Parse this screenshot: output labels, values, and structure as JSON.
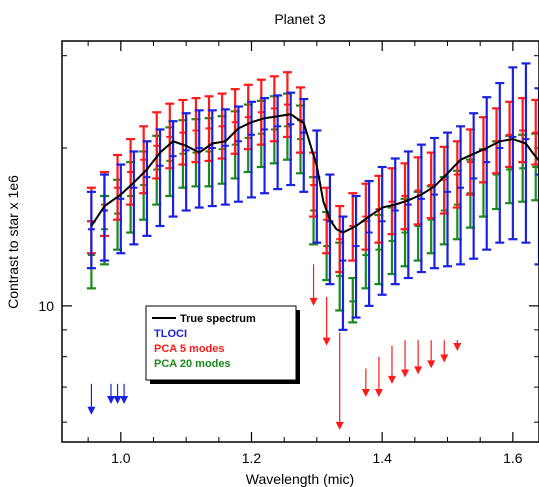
{
  "chart_data": {
    "type": "line",
    "title": "Planet 3",
    "xlabel": "Wavelength (mic)",
    "ylabel": "Contrast to star x 1e6",
    "xlim": [
      0.91,
      1.64
    ],
    "ylim": [
      5.5,
      32
    ],
    "yscale": "log",
    "x_ticks": [
      1.0,
      1.2,
      1.4,
      1.6
    ],
    "x_tick_labels": [
      "1.0",
      "1.2",
      "1.4",
      "1.6"
    ],
    "y_ticks": [
      10
    ],
    "y_tick_labels": [
      "10"
    ],
    "legend": {
      "placement": "lower-left",
      "entries": [
        {
          "label": "True spectrum",
          "color": "#000000"
        },
        {
          "label": "TLOCI",
          "color": "#1a22e0"
        },
        {
          "label": "PCA 5 modes",
          "color": "#ff1a1a"
        },
        {
          "label": "PCA 20 modes",
          "color": "#1a8a1a"
        }
      ]
    },
    "series": [
      {
        "name": "True spectrum",
        "color": "#000000",
        "x": [
          0.955,
          0.975,
          1.0,
          1.02,
          1.04,
          1.06,
          1.08,
          1.1,
          1.12,
          1.14,
          1.16,
          1.18,
          1.2,
          1.22,
          1.24,
          1.26,
          1.28,
          1.3,
          1.31,
          1.32,
          1.33,
          1.34,
          1.36,
          1.38,
          1.4,
          1.42,
          1.44,
          1.46,
          1.48,
          1.5,
          1.52,
          1.54,
          1.56,
          1.58,
          1.6,
          1.62,
          1.63,
          1.64
        ],
        "y": [
          14.2,
          15.5,
          16.3,
          17.2,
          18.2,
          19.6,
          20.6,
          20.2,
          19.6,
          20.4,
          20.6,
          21.8,
          22.4,
          22.8,
          23.0,
          23.2,
          22.3,
          18.5,
          15.8,
          14.6,
          14.0,
          13.8,
          14.2,
          14.8,
          15.4,
          15.6,
          15.9,
          16.3,
          16.9,
          17.9,
          19.0,
          19.5,
          20.0,
          20.6,
          20.8,
          20.4,
          19.6,
          18.9
        ]
      },
      {
        "name": "TLOCI",
        "color": "#1a22e0",
        "x": [
          0.955,
          0.975,
          1.0,
          1.02,
          1.04,
          1.06,
          1.08,
          1.1,
          1.12,
          1.14,
          1.16,
          1.18,
          1.2,
          1.22,
          1.24,
          1.26,
          1.28,
          1.3,
          1.32,
          1.34,
          1.36,
          1.38,
          1.4,
          1.42,
          1.44,
          1.46,
          1.48,
          1.5,
          1.52,
          1.54,
          1.56,
          1.58,
          1.6,
          1.62,
          1.64
        ],
        "y": [
          14.0,
          15.2,
          16.0,
          16.8,
          17.6,
          18.5,
          19.3,
          19.8,
          20.0,
          20.0,
          20.2,
          20.6,
          21.2,
          21.7,
          22.0,
          22.2,
          21.4,
          17.6,
          14.5,
          12.2,
          13.0,
          13.8,
          14.5,
          15.2,
          15.6,
          16.0,
          16.3,
          16.5,
          16.8,
          17.5,
          18.8,
          20.0,
          21.0,
          20.8,
          17.8
        ],
        "err_low": [
          11.8,
          12.2,
          12.6,
          13.1,
          13.6,
          14.2,
          14.8,
          15.2,
          15.4,
          15.5,
          15.6,
          15.8,
          16.1,
          16.4,
          16.7,
          17.0,
          16.5,
          13.2,
          11.0,
          9.0,
          9.5,
          10.0,
          10.5,
          11.0,
          11.3,
          11.6,
          11.8,
          11.9,
          12.0,
          12.3,
          12.8,
          13.2,
          13.4,
          13.2,
          12.0
        ],
        "err_high": [
          16.5,
          17.8,
          18.6,
          19.7,
          20.6,
          21.7,
          22.5,
          23.3,
          23.6,
          23.6,
          23.7,
          24.0,
          24.5,
          24.9,
          25.2,
          25.5,
          24.8,
          21.6,
          17.8,
          14.8,
          16.2,
          17.3,
          18.4,
          19.1,
          19.7,
          20.3,
          20.9,
          21.4,
          22.0,
          23.3,
          25.0,
          26.6,
          28.5,
          29.0,
          26.0
        ]
      },
      {
        "name": "PCA 5 modes",
        "color": "#ff1a1a",
        "x": [
          0.955,
          0.975,
          0.995,
          1.015,
          1.035,
          1.055,
          1.075,
          1.095,
          1.115,
          1.135,
          1.155,
          1.175,
          1.195,
          1.215,
          1.235,
          1.255,
          1.275,
          1.295,
          1.315,
          1.335,
          1.355,
          1.375,
          1.395,
          1.415,
          1.435,
          1.455,
          1.475,
          1.495,
          1.515,
          1.535,
          1.555,
          1.575,
          1.595,
          1.615,
          1.635
        ],
        "y": [
          14.5,
          15.6,
          16.8,
          18.0,
          19.0,
          20.2,
          21.0,
          21.4,
          21.6,
          21.8,
          22.0,
          22.4,
          22.9,
          23.4,
          23.8,
          24.2,
          22.6,
          17.0,
          14.6,
          13.4,
          14.2,
          14.8,
          15.3,
          15.8,
          16.2,
          16.6,
          17.0,
          17.4,
          17.8,
          18.8,
          19.8,
          20.6,
          21.2,
          21.6,
          21.4
        ],
        "err_low": [
          12.6,
          13.6,
          14.6,
          15.6,
          16.4,
          17.5,
          18.3,
          18.6,
          18.8,
          18.9,
          19.1,
          19.5,
          19.9,
          20.3,
          20.6,
          21.0,
          19.6,
          14.8,
          12.6,
          11.6,
          12.2,
          12.8,
          13.2,
          13.7,
          14.0,
          14.3,
          14.7,
          15.0,
          15.4,
          16.3,
          17.2,
          17.9,
          18.4,
          18.8,
          18.6
        ],
        "err_high": [
          16.8,
          18.0,
          19.4,
          20.8,
          22.0,
          23.4,
          24.3,
          24.7,
          24.9,
          25.1,
          25.4,
          25.9,
          26.4,
          27.0,
          27.4,
          27.9,
          26.1,
          19.6,
          16.8,
          15.5,
          16.4,
          17.1,
          17.7,
          18.3,
          18.7,
          19.2,
          19.6,
          20.1,
          20.6,
          21.7,
          22.9,
          23.8,
          24.5,
          24.9,
          24.7
        ]
      },
      {
        "name": "PCA 20 modes",
        "color": "#1a8a1a",
        "x": [
          0.955,
          0.975,
          0.995,
          1.015,
          1.035,
          1.055,
          1.075,
          1.095,
          1.115,
          1.135,
          1.155,
          1.175,
          1.195,
          1.215,
          1.235,
          1.255,
          1.275,
          1.295,
          1.315,
          1.335,
          1.355,
          1.375,
          1.395,
          1.415,
          1.435,
          1.455,
          1.475,
          1.495,
          1.515,
          1.535,
          1.555,
          1.575,
          1.595,
          1.615,
          1.635
        ],
        "y": [
          12.5,
          14.0,
          15.0,
          16.2,
          17.0,
          18.2,
          18.9,
          19.5,
          19.6,
          19.7,
          19.9,
          20.3,
          20.9,
          21.3,
          21.7,
          22.0,
          20.8,
          15.2,
          13.0,
          11.4,
          10.2,
          12.5,
          12.8,
          13.3,
          13.8,
          14.2,
          14.6,
          15.2,
          15.6,
          16.4,
          17.2,
          17.8,
          18.2,
          18.3,
          18.4
        ],
        "err_low": [
          10.8,
          12.0,
          12.8,
          13.8,
          14.6,
          15.6,
          16.2,
          16.8,
          16.9,
          16.9,
          17.1,
          17.5,
          18.0,
          18.4,
          18.7,
          19.0,
          17.9,
          13.1,
          11.2,
          9.8,
          9.3,
          10.8,
          11.0,
          11.5,
          11.9,
          12.2,
          12.6,
          13.1,
          13.4,
          14.1,
          14.8,
          15.3,
          15.7,
          15.8,
          15.9
        ],
        "err_high": [
          14.5,
          16.2,
          17.4,
          18.8,
          19.7,
          21.1,
          21.9,
          22.6,
          22.7,
          22.8,
          23.0,
          23.5,
          24.2,
          24.6,
          25.1,
          25.4,
          24.1,
          17.6,
          15.1,
          13.2,
          11.3,
          14.5,
          14.9,
          15.4,
          16.0,
          16.5,
          16.9,
          17.6,
          18.1,
          19.0,
          19.9,
          20.6,
          21.1,
          21.2,
          21.3
        ]
      },
      {
        "name": "TLOCI upper limits",
        "color": "#1a22e0",
        "upper_limits": true,
        "x": [
          0.955,
          0.985,
          0.995,
          1.005
        ],
        "y": [
          7.1,
          7.1,
          7.1,
          7.1
        ],
        "arrow_end": [
          6.2,
          6.5,
          6.5,
          6.5
        ]
      },
      {
        "name": "PCA 5 modes upper limits",
        "color": "#ff1a1a",
        "upper_limits": true,
        "x": [
          1.295,
          1.315,
          1.335,
          1.375,
          1.395,
          1.415,
          1.435,
          1.455,
          1.475,
          1.495,
          1.515
        ],
        "y": [
          12.0,
          10.4,
          8.9,
          7.6,
          8.0,
          8.4,
          8.6,
          8.6,
          8.6,
          8.6,
          8.6
        ],
        "arrow_end": [
          10.0,
          8.4,
          5.8,
          6.7,
          6.7,
          7.1,
          7.3,
          7.4,
          7.6,
          7.8,
          8.2
        ]
      }
    ]
  }
}
